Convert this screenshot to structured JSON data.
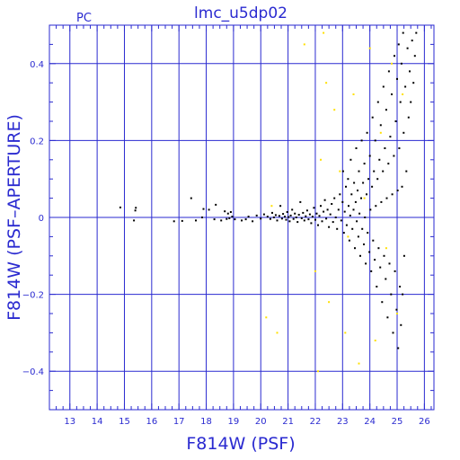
{
  "chart_data": {
    "type": "scatter",
    "title": "lmc_u5dp02",
    "corner_label": "PC",
    "xlabel": "F814W (PSF)",
    "ylabel": "F814W (PSF–APERTURE)",
    "xlim": [
      12.25,
      26.35
    ],
    "ylim": [
      -0.5,
      0.5
    ],
    "x_ticks": [
      13,
      14,
      15,
      16,
      17,
      18,
      19,
      20,
      21,
      22,
      23,
      24,
      25,
      26
    ],
    "y_ticks": [
      -0.4,
      -0.2,
      0,
      0.2,
      0.4
    ],
    "x_tick_labels": [
      "13",
      "14",
      "15",
      "16",
      "17",
      "18",
      "19",
      "20",
      "21",
      "22",
      "23",
      "24",
      "25",
      "26"
    ],
    "y_tick_labels": [
      "−0.4",
      "−0.2",
      "0",
      "0.2",
      "0.4"
    ],
    "grid": true,
    "colors": {
      "axes": "#2a2ad0",
      "main_points": "#000000",
      "secondary_points": "#ffe000"
    },
    "series": [
      {
        "color": "#000000",
        "points": [
          [
            14.85,
            0.026
          ],
          [
            15.35,
            -0.008
          ],
          [
            15.4,
            0.018
          ],
          [
            15.42,
            0.025
          ],
          [
            16.82,
            -0.01
          ],
          [
            17.12,
            -0.009
          ],
          [
            17.45,
            0.05
          ],
          [
            17.62,
            -0.008
          ],
          [
            17.85,
            0.0
          ],
          [
            17.9,
            0.022
          ],
          [
            18.1,
            0.02
          ],
          [
            18.3,
            -0.005
          ],
          [
            18.35,
            0.033
          ],
          [
            18.55,
            -0.008
          ],
          [
            18.68,
            0.016
          ],
          [
            18.75,
            -0.004
          ],
          [
            18.8,
            0.01
          ],
          [
            18.85,
            -0.002
          ],
          [
            18.9,
            0.014
          ],
          [
            18.95,
            0.002
          ],
          [
            19.05,
            -0.005
          ],
          [
            19.3,
            -0.008
          ],
          [
            19.45,
            -0.005
          ],
          [
            19.55,
            0.002
          ],
          [
            19.7,
            -0.01
          ],
          [
            19.85,
            0.005
          ],
          [
            20.0,
            -0.003
          ],
          [
            20.12,
            0.008
          ],
          [
            20.25,
            0.002
          ],
          [
            20.35,
            -0.004
          ],
          [
            20.42,
            0.012
          ],
          [
            20.48,
            0.0
          ],
          [
            20.55,
            0.006
          ],
          [
            20.6,
            -0.008
          ],
          [
            20.68,
            0.004
          ],
          [
            20.72,
            0.03
          ],
          [
            20.78,
            -0.003
          ],
          [
            20.82,
            0.009
          ],
          [
            20.88,
            0.002
          ],
          [
            20.93,
            -0.006
          ],
          [
            20.97,
            0.014
          ],
          [
            21.02,
            0.001
          ],
          [
            21.06,
            -0.01
          ],
          [
            21.1,
            0.005
          ],
          [
            21.15,
            0.02
          ],
          [
            21.2,
            -0.004
          ],
          [
            21.25,
            0.01
          ],
          [
            21.3,
            0.0
          ],
          [
            21.35,
            -0.012
          ],
          [
            21.4,
            0.007
          ],
          [
            21.45,
            0.04
          ],
          [
            21.5,
            -0.002
          ],
          [
            21.55,
            0.012
          ],
          [
            21.6,
            -0.008
          ],
          [
            21.65,
            0.003
          ],
          [
            21.7,
            0.018
          ],
          [
            21.75,
            -0.005
          ],
          [
            21.8,
            0.008
          ],
          [
            21.85,
            -0.015
          ],
          [
            21.9,
            0.002
          ],
          [
            21.95,
            0.025
          ],
          [
            22.0,
            -0.006
          ],
          [
            22.05,
            0.01
          ],
          [
            22.1,
            -0.02
          ],
          [
            22.15,
            0.004
          ],
          [
            22.2,
            0.03
          ],
          [
            22.25,
            -0.01
          ],
          [
            22.3,
            0.015
          ],
          [
            22.35,
            0.045
          ],
          [
            22.4,
            -0.003
          ],
          [
            22.45,
            0.02
          ],
          [
            22.5,
            -0.025
          ],
          [
            22.55,
            0.008
          ],
          [
            22.6,
            0.035
          ],
          [
            22.65,
            -0.012
          ],
          [
            22.7,
            0.05
          ],
          [
            22.75,
            0.0
          ],
          [
            22.8,
            -0.03
          ],
          [
            22.85,
            0.02
          ],
          [
            22.9,
            0.06
          ],
          [
            22.95,
            -0.008
          ],
          [
            23.0,
            0.04
          ],
          [
            23.02,
            0.12
          ],
          [
            23.05,
            -0.04
          ],
          [
            23.08,
            0.015
          ],
          [
            23.12,
            0.08
          ],
          [
            23.15,
            -0.02
          ],
          [
            23.2,
            0.1
          ],
          [
            23.22,
            0.03
          ],
          [
            23.25,
            -0.06
          ],
          [
            23.28,
            0.005
          ],
          [
            23.3,
            0.15
          ],
          [
            23.33,
            0.06
          ],
          [
            23.36,
            -0.03
          ],
          [
            23.4,
            0.02
          ],
          [
            23.42,
            0.09
          ],
          [
            23.45,
            -0.08
          ],
          [
            23.48,
            0.04
          ],
          [
            23.5,
            0.18
          ],
          [
            23.52,
            -0.01
          ],
          [
            23.55,
            0.07
          ],
          [
            23.58,
            -0.05
          ],
          [
            23.6,
            0.12
          ],
          [
            23.62,
            0.01
          ],
          [
            23.65,
            -0.1
          ],
          [
            23.68,
            0.05
          ],
          [
            23.7,
            0.2
          ],
          [
            23.72,
            -0.03
          ],
          [
            23.75,
            0.09
          ],
          [
            23.78,
            -0.07
          ],
          [
            23.8,
            0.14
          ],
          [
            23.82,
            0.0
          ],
          [
            23.85,
            -0.12
          ],
          [
            23.88,
            0.06
          ],
          [
            23.9,
            0.22
          ],
          [
            23.92,
            -0.04
          ],
          [
            23.95,
            0.1
          ],
          [
            23.98,
            -0.09
          ],
          [
            24.0,
            0.16
          ],
          [
            24.02,
            0.02
          ],
          [
            24.05,
            -0.14
          ],
          [
            24.08,
            0.08
          ],
          [
            24.1,
            0.26
          ],
          [
            24.12,
            -0.06
          ],
          [
            24.15,
            0.12
          ],
          [
            24.18,
            -0.11
          ],
          [
            24.2,
            0.2
          ],
          [
            24.22,
            0.03
          ],
          [
            24.25,
            -0.18
          ],
          [
            24.28,
            0.1
          ],
          [
            24.3,
            0.3
          ],
          [
            24.32,
            -0.08
          ],
          [
            24.35,
            0.15
          ],
          [
            24.38,
            -0.13
          ],
          [
            24.4,
            0.24
          ],
          [
            24.42,
            0.04
          ],
          [
            24.45,
            -0.22
          ],
          [
            24.48,
            0.12
          ],
          [
            24.5,
            0.34
          ],
          [
            24.52,
            -0.1
          ],
          [
            24.55,
            0.18
          ],
          [
            24.58,
            -0.16
          ],
          [
            24.6,
            0.28
          ],
          [
            24.62,
            0.05
          ],
          [
            24.65,
            -0.26
          ],
          [
            24.68,
            0.14
          ],
          [
            24.7,
            0.38
          ],
          [
            24.72,
            -0.12
          ],
          [
            24.75,
            0.21
          ],
          [
            24.78,
            -0.2
          ],
          [
            24.8,
            0.32
          ],
          [
            24.82,
            0.06
          ],
          [
            24.85,
            -0.3
          ],
          [
            24.88,
            0.16
          ],
          [
            24.9,
            0.42
          ],
          [
            24.92,
            -0.14
          ],
          [
            24.95,
            0.25
          ],
          [
            24.98,
            -0.24
          ],
          [
            25.0,
            0.36
          ],
          [
            25.02,
            0.07
          ],
          [
            25.04,
            -0.34
          ],
          [
            25.06,
            0.45
          ],
          [
            25.08,
            0.18
          ],
          [
            25.1,
            -0.18
          ],
          [
            25.12,
            0.3
          ],
          [
            25.14,
            -0.28
          ],
          [
            25.16,
            0.4
          ],
          [
            25.18,
            0.08
          ],
          [
            25.2,
            -0.2
          ],
          [
            25.22,
            0.48
          ],
          [
            25.24,
            0.22
          ],
          [
            25.26,
            -0.1
          ],
          [
            25.3,
            0.34
          ],
          [
            25.34,
            0.12
          ],
          [
            25.38,
            0.44
          ],
          [
            25.42,
            0.26
          ],
          [
            25.46,
            0.38
          ],
          [
            25.5,
            0.3
          ],
          [
            25.55,
            0.46
          ],
          [
            25.6,
            0.35
          ],
          [
            25.65,
            0.42
          ],
          [
            25.7,
            0.48
          ]
        ]
      },
      {
        "color": "#ffe000",
        "points": [
          [
            20.2,
            -0.26
          ],
          [
            20.4,
            0.03
          ],
          [
            20.6,
            -0.3
          ],
          [
            21.6,
            0.45
          ],
          [
            22.0,
            -0.14
          ],
          [
            22.1,
            -0.4
          ],
          [
            22.2,
            0.15
          ],
          [
            22.3,
            0.48
          ],
          [
            22.4,
            0.35
          ],
          [
            22.5,
            -0.22
          ],
          [
            22.7,
            0.28
          ],
          [
            22.9,
            0.12
          ],
          [
            23.1,
            -0.3
          ],
          [
            23.2,
            -0.05
          ],
          [
            23.4,
            0.32
          ],
          [
            23.6,
            -0.38
          ],
          [
            23.8,
            0.05
          ],
          [
            24.0,
            0.44
          ],
          [
            24.2,
            -0.32
          ],
          [
            24.4,
            0.22
          ],
          [
            24.6,
            -0.08
          ],
          [
            24.8,
            0.4
          ],
          [
            25.0,
            -0.25
          ],
          [
            25.2,
            0.32
          ]
        ]
      }
    ]
  }
}
